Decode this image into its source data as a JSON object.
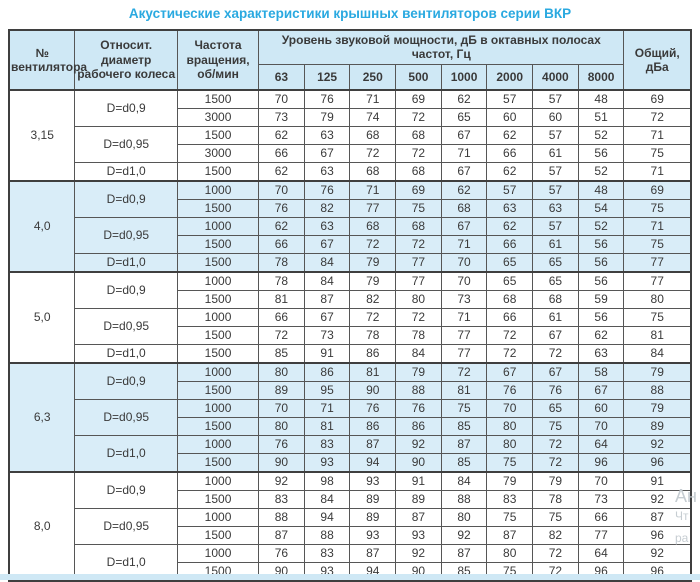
{
  "title": "Акустические характеристики крышных вентиляторов серии ВКР",
  "table": {
    "col_fan": "№ вентилятора",
    "col_diameter": "Относит. диаметр рабочего колеса",
    "col_rpm": "Частота вращения, об/мин",
    "col_spl": "Уровень звуковой мощности, дБ в октавных полосах частот, Гц",
    "col_total": "Общий, дБа",
    "freq_bands": [
      "63",
      "125",
      "250",
      "500",
      "1000",
      "2000",
      "4000",
      "8000"
    ],
    "groups": [
      {
        "fan": "3,15",
        "shaded": false,
        "diameters": [
          {
            "label": "D=d0,9",
            "rows": [
              {
                "rpm": "1500",
                "values": [
                  70,
                  76,
                  71,
                  69,
                  62,
                  57,
                  57,
                  48
                ],
                "total": 69
              },
              {
                "rpm": "3000",
                "values": [
                  73,
                  79,
                  74,
                  72,
                  65,
                  60,
                  60,
                  51
                ],
                "total": 72
              }
            ]
          },
          {
            "label": "D=d0,95",
            "rows": [
              {
                "rpm": "1500",
                "values": [
                  62,
                  63,
                  68,
                  68,
                  67,
                  62,
                  57,
                  52
                ],
                "total": 71
              },
              {
                "rpm": "3000",
                "values": [
                  66,
                  67,
                  72,
                  72,
                  71,
                  66,
                  61,
                  56
                ],
                "total": 75
              }
            ]
          },
          {
            "label": "D=d1,0",
            "rows": [
              {
                "rpm": "1500",
                "values": [
                  62,
                  63,
                  68,
                  68,
                  67,
                  62,
                  57,
                  52
                ],
                "total": 71
              }
            ]
          }
        ]
      },
      {
        "fan": "4,0",
        "shaded": true,
        "diameters": [
          {
            "label": "D=d0,9",
            "rows": [
              {
                "rpm": "1000",
                "values": [
                  70,
                  76,
                  71,
                  69,
                  62,
                  57,
                  57,
                  48
                ],
                "total": 69
              },
              {
                "rpm": "1500",
                "values": [
                  76,
                  82,
                  77,
                  75,
                  68,
                  63,
                  63,
                  54
                ],
                "total": 75
              }
            ]
          },
          {
            "label": "D=d0,95",
            "rows": [
              {
                "rpm": "1000",
                "values": [
                  62,
                  63,
                  68,
                  68,
                  67,
                  62,
                  57,
                  52
                ],
                "total": 71
              },
              {
                "rpm": "1500",
                "values": [
                  66,
                  67,
                  72,
                  72,
                  71,
                  66,
                  61,
                  56
                ],
                "total": 75
              }
            ]
          },
          {
            "label": "D=d1,0",
            "rows": [
              {
                "rpm": "1500",
                "values": [
                  78,
                  84,
                  79,
                  77,
                  70,
                  65,
                  65,
                  56
                ],
                "total": 77
              }
            ]
          }
        ]
      },
      {
        "fan": "5,0",
        "shaded": false,
        "diameters": [
          {
            "label": "D=d0,9",
            "rows": [
              {
                "rpm": "1000",
                "values": [
                  78,
                  84,
                  79,
                  77,
                  70,
                  65,
                  65,
                  56
                ],
                "total": 77
              },
              {
                "rpm": "1500",
                "values": [
                  81,
                  87,
                  82,
                  80,
                  73,
                  68,
                  68,
                  59
                ],
                "total": 80
              }
            ]
          },
          {
            "label": "D=d0,95",
            "rows": [
              {
                "rpm": "1000",
                "values": [
                  66,
                  67,
                  72,
                  72,
                  71,
                  66,
                  61,
                  56
                ],
                "total": 75
              },
              {
                "rpm": "1500",
                "values": [
                  72,
                  73,
                  78,
                  78,
                  77,
                  72,
                  67,
                  62
                ],
                "total": 81
              }
            ]
          },
          {
            "label": "D=d1,0",
            "rows": [
              {
                "rpm": "1500",
                "values": [
                  85,
                  91,
                  86,
                  84,
                  77,
                  72,
                  72,
                  63
                ],
                "total": 84
              }
            ]
          }
        ]
      },
      {
        "fan": "6,3",
        "shaded": true,
        "diameters": [
          {
            "label": "D=d0,9",
            "rows": [
              {
                "rpm": "1000",
                "values": [
                  80,
                  86,
                  81,
                  79,
                  72,
                  67,
                  67,
                  58
                ],
                "total": 79
              },
              {
                "rpm": "1500",
                "values": [
                  89,
                  95,
                  90,
                  88,
                  81,
                  76,
                  76,
                  67
                ],
                "total": 88
              }
            ]
          },
          {
            "label": "D=d0,95",
            "rows": [
              {
                "rpm": "1000",
                "values": [
                  70,
                  71,
                  76,
                  76,
                  75,
                  70,
                  65,
                  60
                ],
                "total": 79
              },
              {
                "rpm": "1500",
                "values": [
                  80,
                  81,
                  86,
                  86,
                  85,
                  80,
                  75,
                  70
                ],
                "total": 89
              }
            ]
          },
          {
            "label": "D=d1,0",
            "rows": [
              {
                "rpm": "1000",
                "values": [
                  76,
                  83,
                  87,
                  92,
                  87,
                  80,
                  72,
                  64
                ],
                "total": 92
              },
              {
                "rpm": "1500",
                "values": [
                  90,
                  93,
                  94,
                  90,
                  85,
                  75,
                  72,
                  96
                ],
                "total": 96
              }
            ]
          }
        ]
      },
      {
        "fan": "8,0",
        "shaded": false,
        "diameters": [
          {
            "label": "D=d0,9",
            "rows": [
              {
                "rpm": "1000",
                "values": [
                  92,
                  98,
                  93,
                  91,
                  84,
                  79,
                  79,
                  70
                ],
                "total": 91
              },
              {
                "rpm": "1500",
                "values": [
                  83,
                  84,
                  89,
                  89,
                  88,
                  83,
                  78,
                  73
                ],
                "total": 92
              }
            ]
          },
          {
            "label": "D=d0,95",
            "rows": [
              {
                "rpm": "1000",
                "values": [
                  88,
                  94,
                  89,
                  87,
                  80,
                  75,
                  75,
                  66
                ],
                "total": 87
              },
              {
                "rpm": "1500",
                "values": [
                  87,
                  88,
                  93,
                  93,
                  92,
                  87,
                  82,
                  77
                ],
                "total": 96
              }
            ]
          },
          {
            "label": "D=d1,0",
            "rows": [
              {
                "rpm": "1000",
                "values": [
                  76,
                  83,
                  87,
                  92,
                  87,
                  80,
                  72,
                  64
                ],
                "total": 92
              },
              {
                "rpm": "1500",
                "values": [
                  90,
                  93,
                  94,
                  90,
                  85,
                  75,
                  72,
                  96
                ],
                "total": 96
              }
            ]
          }
        ]
      }
    ]
  },
  "watermark": {
    "line1": "Ан",
    "line2": "Чт",
    "line3": "ра"
  },
  "colors": {
    "title": "#2aa9e0",
    "header_bg": "#cfe8f5",
    "shaded_row_bg": "#d9edf8",
    "border": "#3f3f3f",
    "text": "#3a3a3a"
  }
}
